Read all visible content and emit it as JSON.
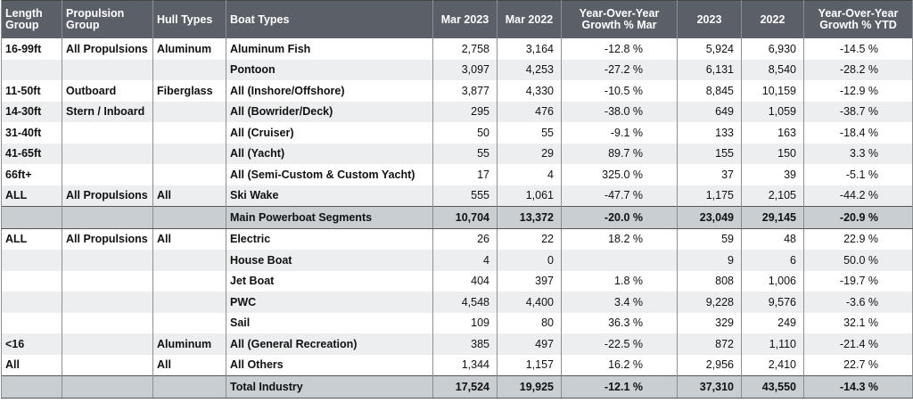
{
  "table": {
    "header": [
      "Length Group",
      "Propulsion Group",
      "Hull Types",
      "Boat Types",
      "Mar 2023",
      "Mar 2022",
      "Year-Over-Year Growth % Mar",
      "2023",
      "2022",
      "Year-Over-Year Growth % YTD"
    ],
    "sections": [
      {
        "rows": [
          [
            "16-99ft",
            "All Propulsions",
            "Aluminum",
            "Aluminum Fish",
            "2,758",
            "3,164",
            "-12.8 %",
            "5,924",
            "6,930",
            "-14.5 %"
          ],
          [
            null,
            null,
            null,
            "Pontoon",
            "3,097",
            "4,253",
            "-27.2 %",
            "6,131",
            "8,540",
            "-28.2 %"
          ],
          [
            "11-50ft",
            "Outboard",
            "Fiberglass",
            "All (Inshore/Offshore)",
            "3,877",
            "4,330",
            "-10.5 %",
            "8,845",
            "10,159",
            "-12.9 %"
          ],
          [
            "14-30ft",
            "Stern / Inboard",
            null,
            "All (Bowrider/Deck)",
            "295",
            "476",
            "-38.0 %",
            "649",
            "1,059",
            "-38.7 %"
          ],
          [
            "31-40ft",
            null,
            null,
            "All (Cruiser)",
            "50",
            "55",
            "-9.1 %",
            "133",
            "163",
            "-18.4 %"
          ],
          [
            "41-65ft",
            null,
            null,
            "All (Yacht)",
            "55",
            "29",
            "89.7 %",
            "155",
            "150",
            "3.3 %"
          ],
          [
            "66ft+",
            null,
            null,
            "All (Semi-Custom & Custom Yacht)",
            "17",
            "4",
            "325.0 %",
            "37",
            "39",
            "-5.1 %"
          ],
          [
            "ALL",
            "All Propulsions",
            "All",
            "Ski Wake",
            "555",
            "1,061",
            "-47.7 %",
            "1,175",
            "2,105",
            "-44.2 %"
          ]
        ],
        "subtotal": [
          "Main Powerboat Segments",
          "10,704",
          "13,372",
          "-20.0 %",
          "23,049",
          "29,145",
          "-20.9 %"
        ]
      },
      {
        "rows": [
          [
            "ALL",
            "All Propulsions",
            "All",
            "Electric",
            "26",
            "22",
            "18.2 %",
            "59",
            "48",
            "22.9 %"
          ],
          [
            null,
            null,
            null,
            "House Boat",
            "4",
            "0",
            null,
            "9",
            "6",
            "50.0 %"
          ],
          [
            null,
            null,
            null,
            "Jet Boat",
            "404",
            "397",
            "1.8 %",
            "808",
            "1,006",
            "-19.7 %"
          ],
          [
            null,
            null,
            null,
            "PWC",
            "4,548",
            "4,400",
            "3.4 %",
            "9,228",
            "9,576",
            "-3.6 %"
          ],
          [
            null,
            null,
            null,
            "Sail",
            "109",
            "80",
            "36.3 %",
            "329",
            "249",
            "32.1 %"
          ],
          [
            "<16",
            null,
            "Aluminum",
            "All (General Recreation)",
            "385",
            "497",
            "-22.5 %",
            "872",
            "1,110",
            "-21.4 %"
          ],
          [
            "All",
            null,
            "All",
            "All Others",
            "1,344",
            "1,157",
            "16.2 %",
            "2,956",
            "2,410",
            "22.7 %"
          ]
        ],
        "subtotal": [
          "Total Industry",
          "17,524",
          "19,925",
          "-12.1 %",
          "37,310",
          "43,550",
          "-14.3 %"
        ]
      }
    ]
  }
}
